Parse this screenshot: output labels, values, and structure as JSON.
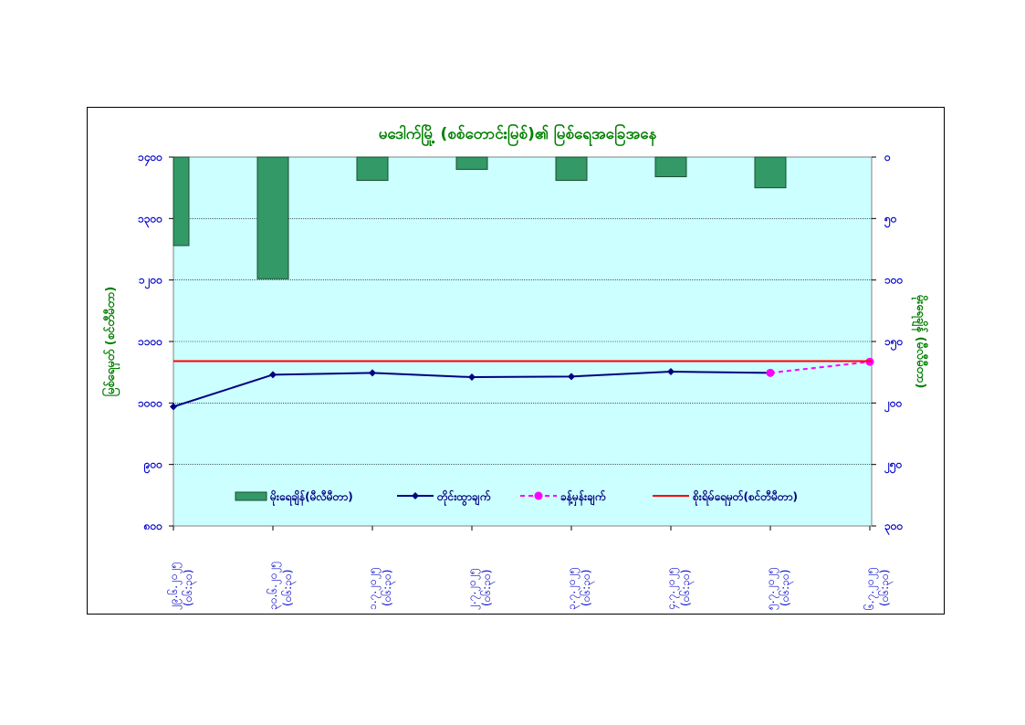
{
  "chart_data": {
    "type": "bar+line",
    "title": "မဒေါက်မြို့ (စစ်တောင်းမြစ်)၏ မြစ်ရေအခြေအနေ",
    "ylabel_left": "မြစ်ရေမှတ် (စင်တီမီတာ)",
    "ylabel_right": "မိုးရေချိန် (မီလီမီတာ)",
    "ylim_left": [
      800,
      1400
    ],
    "ylim_right": [
      300,
      0
    ],
    "left_ticks": [
      "၁၄၀၀",
      "၁၃၀၀",
      "၁၂၀၀",
      "၁၁၀၀",
      "၁၀၀၀",
      "၉၀၀",
      "၈၀၀"
    ],
    "left_tick_values": [
      1400,
      1300,
      1200,
      1100,
      1000,
      900,
      800
    ],
    "right_ticks": [
      "၀",
      "၅၀",
      "၁၀၀",
      "၁၅၀",
      "၂၀၀",
      "၂၅၀",
      "၃၀၀"
    ],
    "right_tick_values": [
      0,
      50,
      100,
      150,
      200,
      250,
      300
    ],
    "grid": true,
    "legend_position": "bottom-inside",
    "categories": [
      {
        "date": "၂၉.၆.၂၀၂၅",
        "time": "(၀၆:၃၀)"
      },
      {
        "date": "၃၀.၆.၂၀၂၅",
        "time": "(၀၆:၃၀)"
      },
      {
        "date": "၁.၇.၂၀၂၅",
        "time": "(၀၆:၃၀)"
      },
      {
        "date": "၂.၇.၂၀၂၅",
        "time": "(၀၆:၃၀)"
      },
      {
        "date": "၃.၇.၂၀၂၅",
        "time": "(၀၆:၃၀)"
      },
      {
        "date": "၄.၇.၂၀၂၅",
        "time": "(၀၆:၃၀)"
      },
      {
        "date": "၅.၇.၂၀၂၅",
        "time": "(၀၆:၃၀)"
      },
      {
        "date": "၆.၇.၂၀၂၅",
        "time": "(၀၆:၃၀)"
      }
    ],
    "series": [
      {
        "name": "မိုးရေချိန်(မီလီမီတာ)",
        "type": "bar",
        "axis": "right",
        "color": "#339966",
        "values": [
          72,
          99,
          19,
          10,
          19,
          16,
          25,
          null
        ]
      },
      {
        "name": "တိုင်းထွာချက်",
        "type": "line",
        "axis": "left",
        "color": "#000080",
        "values": [
          994,
          1046,
          1049,
          1042,
          1043,
          1051,
          1049,
          null
        ]
      },
      {
        "name": "ခန့်မှန်းချက်",
        "type": "line-dashed",
        "axis": "left",
        "color": "#ff00ff",
        "values": [
          null,
          null,
          null,
          null,
          null,
          null,
          1049,
          1067
        ]
      },
      {
        "name": "စိုးရိမ်ရေမှတ်(စင်တီမီတာ)",
        "type": "hline",
        "axis": "left",
        "color": "#ff0000",
        "value": 1068
      }
    ]
  }
}
